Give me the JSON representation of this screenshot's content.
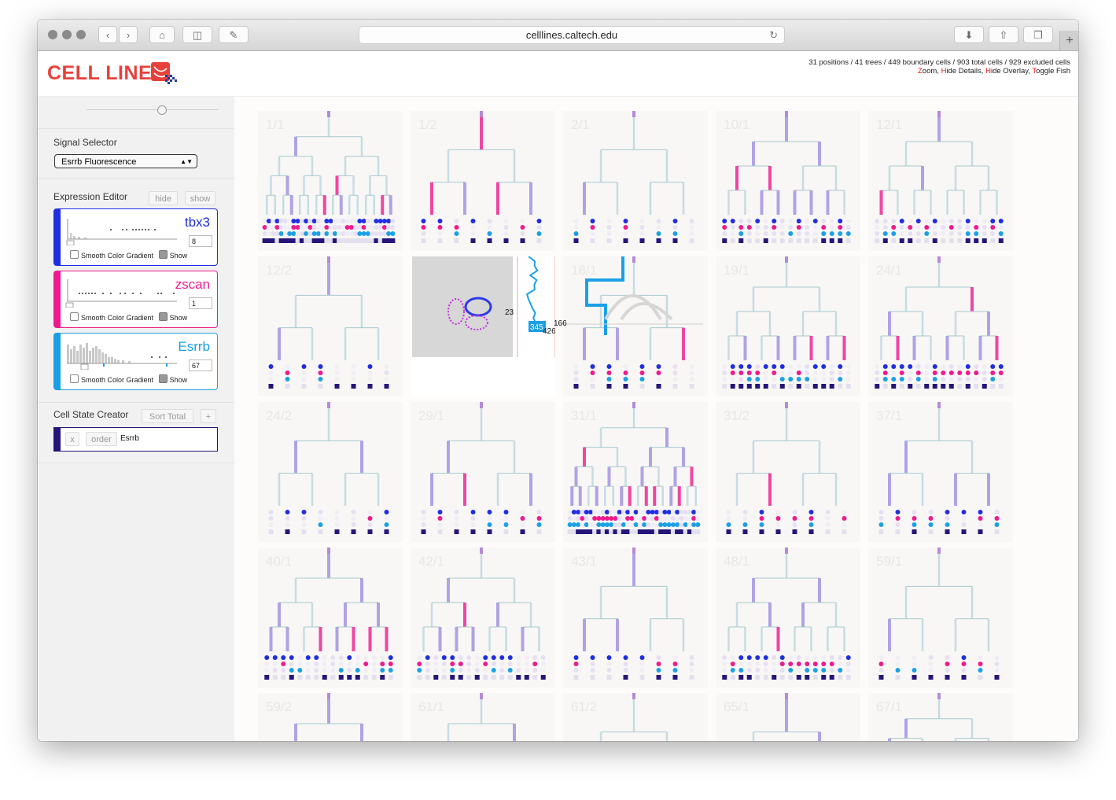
{
  "browser": {
    "url": "celllines.caltech.edu"
  },
  "app": {
    "logo_text": "CELL LINES",
    "stats_line": "31 positions / 41 trees / 449 boundary cells / 903 total cells / 929 excluded cells",
    "actions": [
      {
        "first": "Z",
        "rest": "oom"
      },
      {
        "first": "H",
        "rest": "ide Details"
      },
      {
        "first": "H",
        "rest": "ide Overlay"
      },
      {
        "first": "T",
        "rest": "oggle Fish"
      }
    ],
    "action_sep": ", "
  },
  "sidebar": {
    "signal_selector_label": "Signal Selector",
    "signal_selected": "Esrrb Fluorescence",
    "expression_editor_label": "Expression Editor",
    "hide_label": "hide",
    "show_label": "show",
    "genes": [
      {
        "name": "tbx3",
        "value": "8",
        "color": "#1f2ee0"
      },
      {
        "name": "zscan",
        "value": "1",
        "color": "#ee1a8e"
      },
      {
        "name": "Esrrb",
        "value": "67",
        "color": "#1ba0e6"
      }
    ],
    "smooth_label": "Smooth Color Gradient",
    "show_check_label": "Show",
    "cell_state_creator_label": "Cell State Creator",
    "sort_total_label": "Sort Total",
    "add_label": "+",
    "state_row": {
      "x_label": "x",
      "order_label": "order",
      "gene": "Esrrb"
    }
  },
  "trees": [
    "1/1",
    "1/2",
    "2/1",
    "10/1",
    "12/1",
    "12/2",
    "",
    "18/1",
    "19/1",
    "24/1",
    "24/2",
    "29/1",
    "31/1",
    "31/2",
    "37/1",
    "40/1",
    "42/1",
    "43/1",
    "48/1",
    "59/1",
    "59/2",
    "61/1",
    "61/2",
    "65/1",
    "67/1"
  ],
  "overlay": {
    "label_a": "23",
    "label_b": "345",
    "label_c": "426",
    "label_d": "166"
  },
  "colors": {
    "tbx3": "#1f2ee0",
    "zscan": "#ee1a8e",
    "esrrb": "#1ba0e6",
    "dark": "#25157a",
    "branch": "#b9d6de",
    "accent": "#e8413b"
  }
}
